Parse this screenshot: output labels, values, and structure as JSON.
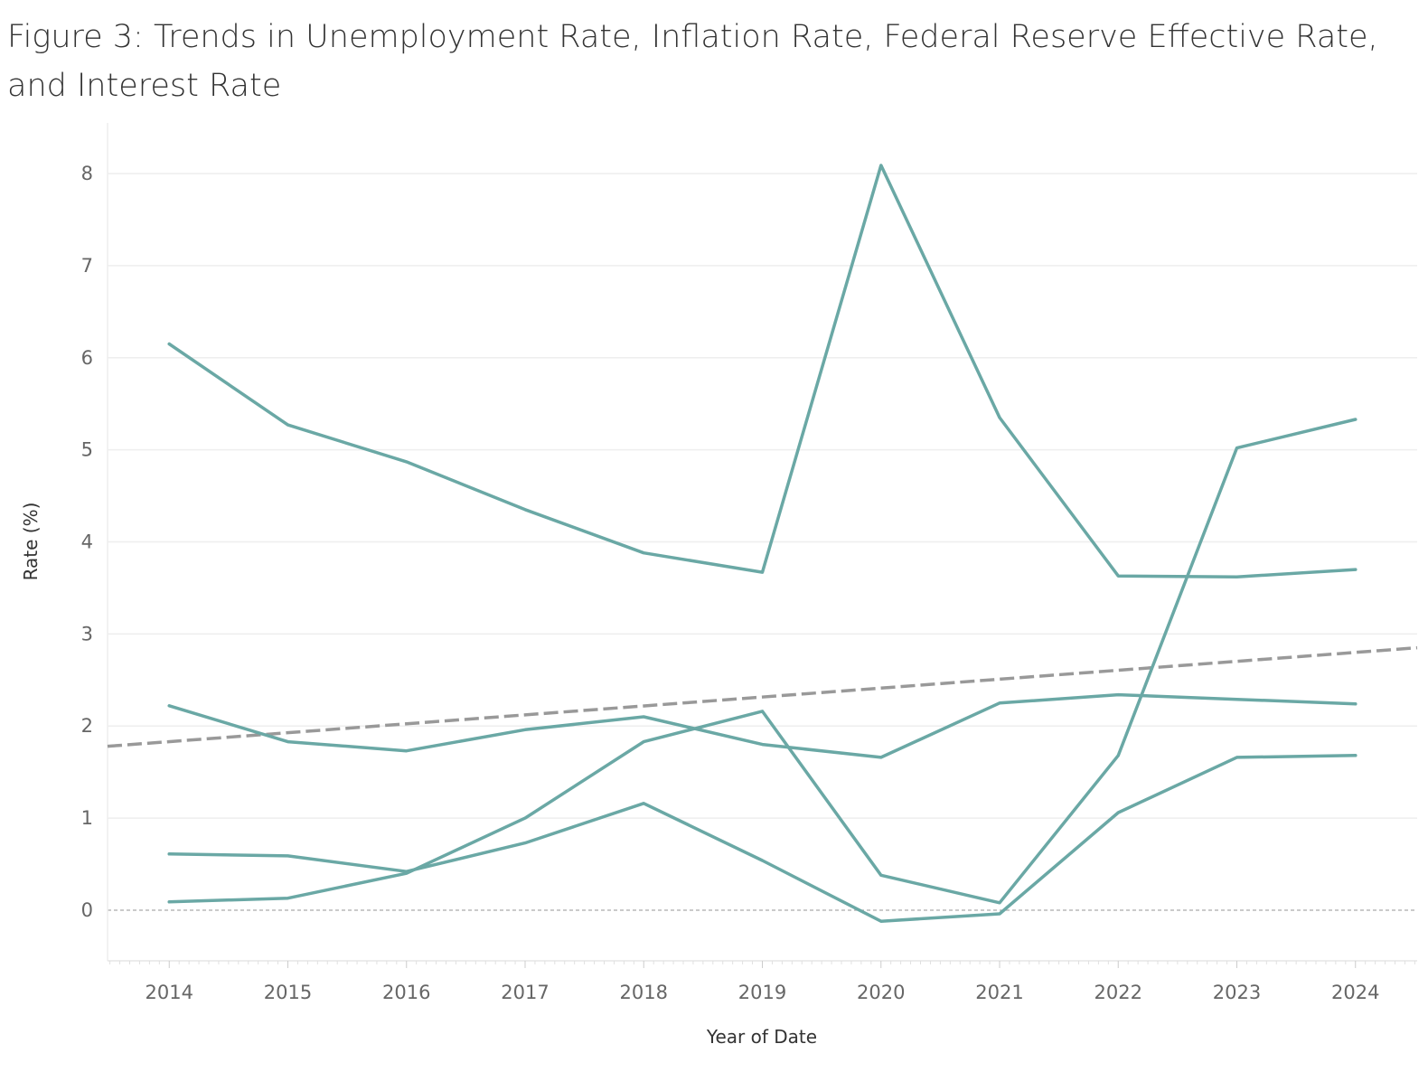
{
  "chart_data": {
    "type": "line",
    "title": "Figure 3: Trends in Unemployment Rate, Inflation Rate, Federal Reserve Effective Rate, and Interest Rate",
    "xlabel": "Year of Date",
    "ylabel": "Rate (%)",
    "x": [
      2014,
      2015,
      2016,
      2017,
      2018,
      2019,
      2020,
      2021,
      2022,
      2023,
      2024
    ],
    "xlim": [
      2013.48,
      2024.52
    ],
    "ylim": [
      -0.55,
      8.55
    ],
    "yticks": [
      0,
      1,
      2,
      3,
      4,
      5,
      6,
      7,
      8
    ],
    "grid": true,
    "legend": "none",
    "colors": {
      "series": "#6aa8a5",
      "trend": "#999999",
      "grid": "#eeeeee",
      "zero_line": "#aaaaaa"
    },
    "series": [
      {
        "values": [
          6.15,
          5.27,
          4.87,
          4.35,
          3.88,
          3.67,
          8.09,
          5.35,
          3.63,
          3.62,
          3.7
        ]
      },
      {
        "values": [
          2.22,
          1.83,
          1.73,
          1.96,
          2.1,
          1.8,
          1.66,
          2.25,
          2.34,
          2.29,
          2.24
        ]
      },
      {
        "values": [
          0.09,
          0.13,
          0.4,
          1.0,
          1.83,
          2.16,
          0.38,
          0.08,
          1.68,
          5.02,
          5.33
        ]
      },
      {
        "values": [
          0.61,
          0.59,
          0.42,
          0.73,
          1.16,
          0.54,
          -0.12,
          -0.04,
          1.06,
          1.66,
          1.68
        ]
      }
    ],
    "trend_line": {
      "style": "dashed",
      "x": [
        2013.48,
        2024.52
      ],
      "y": [
        1.78,
        2.85
      ]
    }
  }
}
